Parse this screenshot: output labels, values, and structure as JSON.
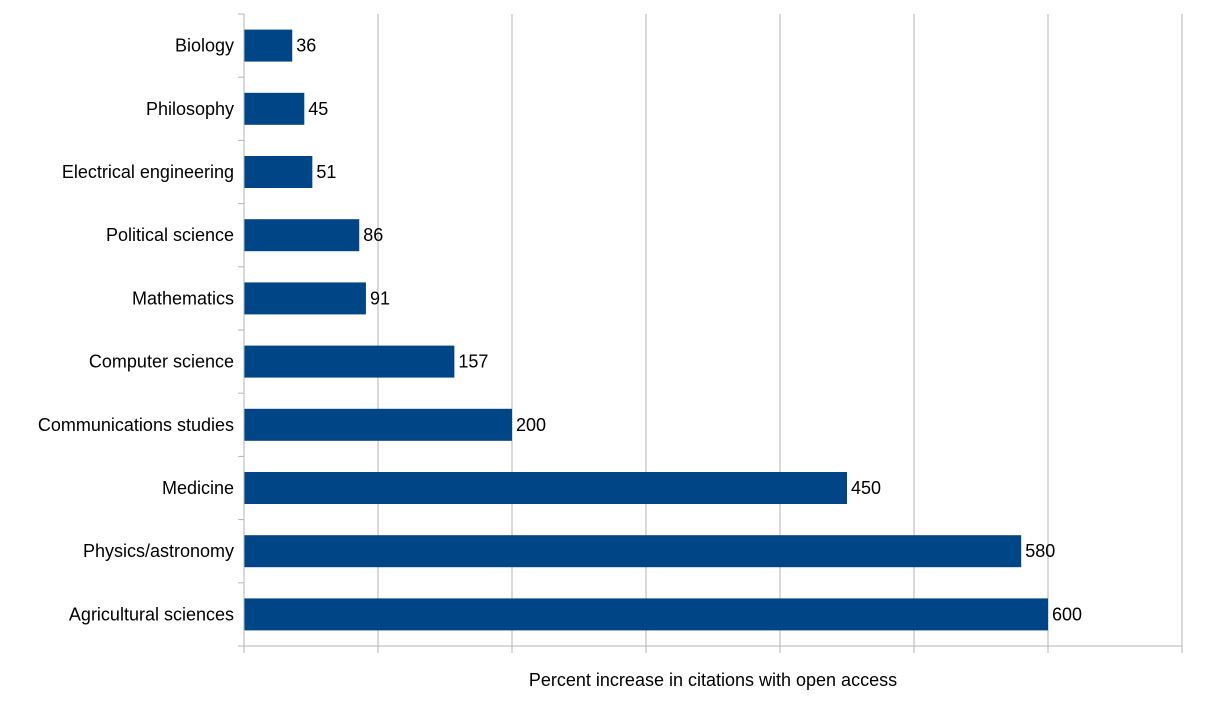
{
  "chart_data": {
    "type": "bar",
    "orientation": "horizontal",
    "title": "",
    "xlabel": "Percent increase in citations with open access",
    "ylabel": "",
    "xlim": [
      0,
      700
    ],
    "grid": true,
    "legend": "none",
    "bar_color": "#004586",
    "categories": [
      "Biology",
      "Philosophy",
      "Electrical engineering",
      "Political science",
      "Mathematics",
      "Computer science",
      "Communications studies",
      "Medicine",
      "Physics/astronomy",
      "Agricultural sciences"
    ],
    "values": [
      36,
      45,
      51,
      86,
      91,
      157,
      200,
      450,
      580,
      600
    ],
    "data_labels": [
      "36",
      "45",
      "51",
      "86",
      "91",
      "157",
      "200",
      "450",
      "580",
      "600"
    ]
  }
}
